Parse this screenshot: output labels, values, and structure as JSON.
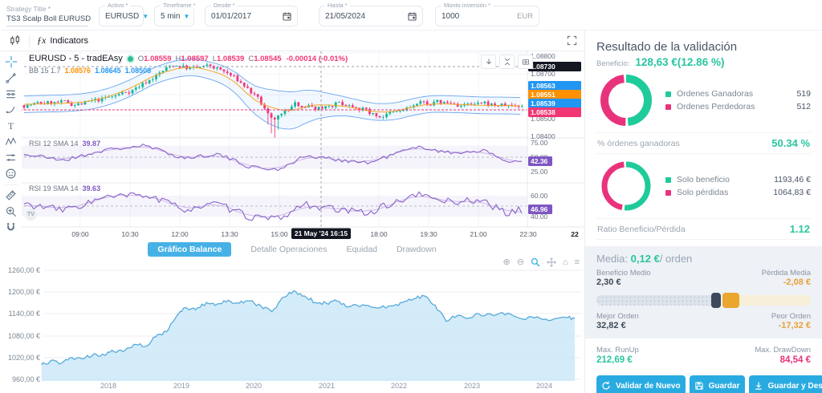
{
  "colors": {
    "accent_blue": "#29abe2",
    "teal": "#29c5a0",
    "pink": "#e8337c",
    "amber": "#e9a13b",
    "candle_up": "#17b79a",
    "candle_down": "#f2367b",
    "bb_blue": "#2196f3",
    "bb_mid": "#ff9100",
    "rsi_purple": "#8a63c9"
  },
  "topbar": {
    "strategy_title": {
      "label": "Strategy Title *",
      "value": "TS3 Scalp Boll EURUSD"
    },
    "activo": {
      "label": "Activo *",
      "value": "EURUSD"
    },
    "timeframe": {
      "label": "Timeframe *",
      "value": "5 min"
    },
    "desde": {
      "label": "Desde *",
      "value": "01/01/2017"
    },
    "hasta": {
      "label": "Hasta *",
      "value": "21/05/2024"
    },
    "monto": {
      "label": "Monto inversión *",
      "value": "1000",
      "suffix": "EUR"
    }
  },
  "tv_chart": {
    "toolbar": {
      "fx": "ƒx",
      "indicators_label": "Indicators"
    },
    "drawing_tools": [
      "crosshair",
      "trend-line",
      "fib-retracement",
      "brush",
      "text-tool",
      "xabcd-pattern",
      "projection",
      "emoji",
      "measure",
      "zoom-in"
    ],
    "symbol_row": {
      "symbol": "EURUSD - 5 - tradEAsy",
      "ohlc": [
        {
          "k": "O",
          "v": "1.08559"
        },
        {
          "k": "H",
          "v": "1.08597"
        },
        {
          "k": "L",
          "v": "1.08539"
        },
        {
          "k": "C",
          "v": "1.08545"
        }
      ],
      "change": "-0.00014 (-0.01%)"
    },
    "bb_row": {
      "name": "BB 15 1.7",
      "values": [
        "1.08576",
        "1.08645",
        "1.08508"
      ]
    },
    "rsi1": {
      "name": "RSI 12 SMA 14",
      "value": "39.87",
      "tag": "42.36",
      "ticks": [
        {
          "v": "75.00",
          "y": 114
        },
        {
          "v": "50.00",
          "y": 132
        },
        {
          "v": "25.00",
          "y": 150
        }
      ],
      "tag_y": 137
    },
    "rsi2": {
      "name": "RSI 19 SMA 14",
      "value": "39.63",
      "tag": "46.96",
      "ticks": [
        {
          "v": "60.00",
          "y": 180
        },
        {
          "v": "40.00",
          "y": 206
        }
      ],
      "tag_y": 197
    },
    "price_ticks": [
      {
        "v": "1.08800",
        "y": 6
      },
      {
        "v": "1.08700",
        "y": 28
      },
      {
        "v": "1.08500",
        "y": 84
      },
      {
        "v": "1.08400",
        "y": 106
      }
    ],
    "price_tags": [
      {
        "v": "1.08730",
        "y": 19,
        "bg": "#131722"
      },
      {
        "v": "1.08563",
        "y": 43,
        "bg": "#2196f3"
      },
      {
        "v": "1.08551",
        "y": 54,
        "bg": "#ff9100"
      },
      {
        "v": "1.08539",
        "y": 65,
        "bg": "#2196f3"
      },
      {
        "v": "1.08538",
        "y": 76,
        "bg": "#f23674"
      }
    ],
    "time_ticks": [
      {
        "x": 100,
        "t": "09:00"
      },
      {
        "x": 162,
        "t": "10:30"
      },
      {
        "x": 224,
        "t": "12:00"
      },
      {
        "x": 286,
        "t": "13:30"
      },
      {
        "x": 348,
        "t": "15:00"
      },
      {
        "x": 472,
        "t": "18:00"
      },
      {
        "x": 534,
        "t": "19:30"
      },
      {
        "x": 596,
        "t": "21:00"
      },
      {
        "x": 658,
        "t": "22:30"
      },
      {
        "x": 716,
        "t": "22",
        "bold": true
      }
    ],
    "crosshair": {
      "x": 400,
      "time_label": "21 May '24  16:15"
    }
  },
  "balance": {
    "tabs": [
      {
        "label": "Gráfico Balance",
        "active": true
      },
      {
        "label": "Detalle Operaciones",
        "active": false
      },
      {
        "label": "Equidad",
        "active": false
      },
      {
        "label": "Drawdown",
        "active": false
      }
    ],
    "yticks": [
      {
        "v": "1260,00 €",
        "y": 17
      },
      {
        "v": "1200,00 €",
        "y": 44
      },
      {
        "v": "1140,00 €",
        "y": 71
      },
      {
        "v": "1080,00 €",
        "y": 99
      },
      {
        "v": "1020,00 €",
        "y": 126
      },
      {
        "v": "960,00 €",
        "y": 153
      }
    ],
    "xticks": [
      {
        "v": "2018",
        "x": 135
      },
      {
        "v": "2019",
        "x": 226
      },
      {
        "v": "2020",
        "x": 316
      },
      {
        "v": "2021",
        "x": 407
      },
      {
        "v": "2022",
        "x": 497
      },
      {
        "v": "2023",
        "x": 588
      },
      {
        "v": "2024",
        "x": 678
      }
    ]
  },
  "results_panel": {
    "title": "Resultado de la validación",
    "beneficio": {
      "label": "Beneficio:",
      "value": "128,63 €(12.86 %)"
    },
    "wins_donut": {
      "green_pct": 50.34,
      "legend": [
        {
          "label": "Ordenes Ganadoras",
          "value": "519",
          "color": "#1fcb9b"
        },
        {
          "label": "Ordenes Perdedoras",
          "value": "512",
          "color": "#e8337c"
        }
      ]
    },
    "pct_row": {
      "label": "% órdenes ganadoras",
      "value": "50.34 %"
    },
    "profit_donut": {
      "green_pct": 52.85,
      "legend": [
        {
          "label": "Solo beneficio",
          "value": "1193,46 €",
          "color": "#1fcb9b"
        },
        {
          "label": "Solo pérdidas",
          "value": "1064,83 €",
          "color": "#e8337c"
        }
      ]
    },
    "ratio_row": {
      "label": "Ratio Beneficio/Pérdida",
      "value": "1.12"
    },
    "media": {
      "prefix": "Media:",
      "value": "0,12 €",
      "suffix": "/ orden",
      "left_top": {
        "label": "Beneficio Medio",
        "value": "2,30 €"
      },
      "right_top": {
        "label": "Pérdida Media",
        "value": "-2,08 €"
      },
      "left_bottom": {
        "label": "Mejor Orden",
        "value": "32,82 €"
      },
      "right_bottom": {
        "label": "Peor Orden",
        "value": "-17,32 €"
      },
      "bar_segments": [
        {
          "name": "loss-range",
          "pct": 54
        },
        {
          "name": "avg-loss",
          "pct": 4.5
        },
        {
          "name": "avg-profit",
          "pct": 8
        },
        {
          "name": "profit-range",
          "pct": 33.5
        }
      ]
    },
    "runup": {
      "label": "Max. RunUp",
      "value": "212,69 €"
    },
    "drawdown": {
      "label": "Max. DrawDown",
      "value": "84,54 €"
    },
    "buttons": [
      {
        "label": "Validar de Nuevo",
        "icon": "refresh"
      },
      {
        "label": "Guardar",
        "icon": "save"
      },
      {
        "label": "Guardar y Descargar",
        "icon": "download"
      }
    ]
  },
  "chart_data": [
    {
      "id": "balance-equity",
      "type": "area",
      "title": "Gráfico Balance",
      "xlabel": "year",
      "ylabel": "EUR",
      "x_ticks": [
        "2018",
        "2019",
        "2020",
        "2021",
        "2022",
        "2023",
        "2024"
      ],
      "y_ticks": [
        "1260,00 €",
        "1200,00 €",
        "1140,00 €",
        "1080,00 €",
        "1020,00 €",
        "960,00 €"
      ],
      "ylim": [
        960,
        1280
      ],
      "start_value": 1000,
      "end_value": 1128.63,
      "x": [
        2017.08,
        2017.2,
        2017.35,
        2017.5,
        2017.65,
        2017.8,
        2017.95,
        2018.05,
        2018.2,
        2018.35,
        2018.5,
        2018.65,
        2018.8,
        2018.95,
        2019.05,
        2019.2,
        2019.35,
        2019.5,
        2019.65,
        2019.8,
        2019.95,
        2020.1,
        2020.25,
        2020.4,
        2020.55,
        2020.7,
        2020.85,
        2021.0,
        2021.15,
        2021.3,
        2021.5,
        2021.7,
        2021.9,
        2022.05,
        2022.2,
        2022.35,
        2022.5,
        2022.65,
        2022.8,
        2022.95,
        2023.1,
        2023.3,
        2023.5,
        2023.7,
        2023.9,
        2024.1,
        2024.3,
        2024.42
      ],
      "y": [
        1002,
        1012,
        1006,
        1022,
        1018,
        1032,
        1028,
        1042,
        1038,
        1058,
        1052,
        1078,
        1092,
        1138,
        1158,
        1152,
        1172,
        1168,
        1178,
        1170,
        1176,
        1163,
        1147,
        1186,
        1204,
        1190,
        1172,
        1170,
        1176,
        1160,
        1166,
        1157,
        1163,
        1172,
        1182,
        1190,
        1164,
        1121,
        1136,
        1129,
        1141,
        1136,
        1143,
        1127,
        1133,
        1124,
        1131,
        1128.63
      ]
    },
    {
      "id": "eurusd-candles",
      "type": "candlestick",
      "symbol": "EURUSD 5m",
      "session": "21 May '24",
      "ylim": [
        1.084,
        1.088
      ],
      "price_path": [
        [
          30,
          1.0855
        ],
        [
          60,
          1.08562
        ],
        [
          100,
          1.08554
        ],
        [
          140,
          1.08592
        ],
        [
          170,
          1.08638
        ],
        [
          195,
          1.087
        ],
        [
          215,
          1.08748
        ],
        [
          235,
          1.08722
        ],
        [
          262,
          1.08736
        ],
        [
          285,
          1.08692
        ],
        [
          305,
          1.08634
        ],
        [
          322,
          1.08558
        ],
        [
          338,
          1.0846
        ],
        [
          352,
          1.08516
        ],
        [
          368,
          1.0856
        ],
        [
          392,
          1.08536
        ],
        [
          418,
          1.08562
        ],
        [
          444,
          1.08546
        ],
        [
          468,
          1.08492
        ],
        [
          492,
          1.08512
        ],
        [
          518,
          1.08556
        ],
        [
          548,
          1.08562
        ],
        [
          578,
          1.08546
        ],
        [
          608,
          1.08552
        ],
        [
          632,
          1.08546
        ],
        [
          652,
          1.08545
        ]
      ]
    },
    {
      "id": "rsi-12",
      "type": "line",
      "ylim": [
        0,
        100
      ],
      "anchors": [
        [
          30,
          55
        ],
        [
          80,
          45
        ],
        [
          130,
          62
        ],
        [
          180,
          70
        ],
        [
          230,
          48
        ],
        [
          270,
          56
        ],
        [
          310,
          34
        ],
        [
          345,
          28
        ],
        [
          380,
          52
        ],
        [
          420,
          46
        ],
        [
          460,
          40
        ],
        [
          500,
          60
        ],
        [
          525,
          68
        ],
        [
          560,
          57
        ],
        [
          600,
          62
        ],
        [
          630,
          44
        ],
        [
          652,
          42
        ]
      ]
    },
    {
      "id": "rsi-19",
      "type": "line",
      "ylim": [
        0,
        100
      ],
      "anchors": [
        [
          30,
          52
        ],
        [
          80,
          46
        ],
        [
          130,
          58
        ],
        [
          180,
          61
        ],
        [
          230,
          47
        ],
        [
          270,
          52
        ],
        [
          310,
          40
        ],
        [
          345,
          37
        ],
        [
          380,
          52
        ],
        [
          420,
          46
        ],
        [
          460,
          44
        ],
        [
          500,
          56
        ],
        [
          525,
          61
        ],
        [
          560,
          54
        ],
        [
          600,
          56
        ],
        [
          630,
          43
        ],
        [
          652,
          47
        ]
      ]
    },
    {
      "id": "wins-donut",
      "type": "pie",
      "labels": [
        "Ordenes Ganadoras",
        "Ordenes Perdedoras"
      ],
      "values": [
        519,
        512
      ]
    },
    {
      "id": "profit-donut",
      "type": "pie",
      "labels": [
        "Solo beneficio",
        "Solo pérdidas"
      ],
      "values": [
        1193.46,
        1064.83
      ]
    }
  ]
}
